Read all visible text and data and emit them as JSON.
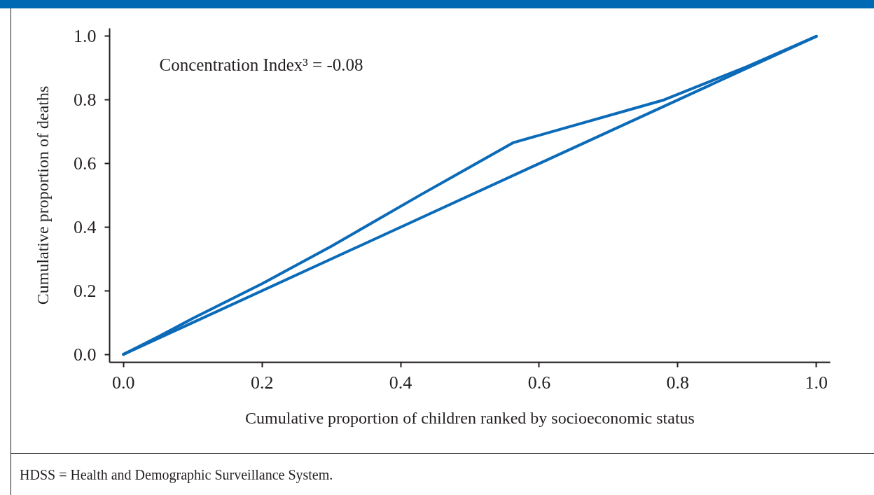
{
  "chart_data": {
    "type": "line",
    "xlabel": "Cumulative proportion of children ranked by socioeconomic status",
    "ylabel": "Cumulative proportion of deaths",
    "annotations": [
      "Concentration Index³ = -0.08",
      "HDSS = Health and Demographic Surveillance System."
    ],
    "series": [
      {
        "color": "#0b6bb8",
        "x": [
          0,
          0.05,
          0.1,
          0.2,
          0.3,
          0.43,
          0.563,
          0.78,
          0.9,
          1
        ],
        "values": [
          0,
          0.055,
          0.113,
          0.222,
          0.34,
          0.503,
          0.666,
          0.8,
          0.905,
          1
        ]
      },
      {
        "color": "#0b6bb8",
        "x": [
          0,
          1
        ],
        "values": [
          0,
          1
        ]
      }
    ],
    "xlim": [
      -0.02,
      1.02
    ],
    "ylim": [
      -0.025,
      1.025
    ],
    "xticks": [
      {
        "value": 0,
        "label": "0.0"
      },
      0.2,
      0.4,
      0.6,
      0.8,
      {
        "value": 1,
        "label": "1.0"
      }
    ],
    "yticks": [
      {
        "value": 0,
        "label": "0.0"
      },
      0.2,
      0.4,
      0.6,
      0.8,
      {
        "value": 1,
        "label": "1.0"
      }
    ],
    "grid": false,
    "line_style": "solid"
  }
}
